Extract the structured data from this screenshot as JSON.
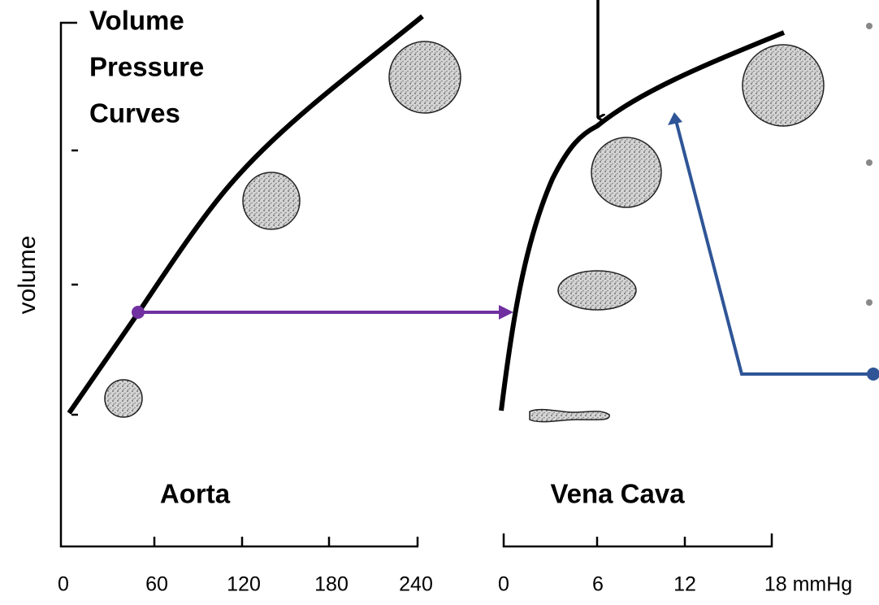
{
  "title": {
    "lines": [
      "Volume",
      "Pressure",
      "Curves"
    ]
  },
  "y_axis_label": "volume",
  "panels": [
    {
      "label": "Aorta",
      "ticks": [
        "0",
        "60",
        "120",
        "180",
        "240"
      ]
    },
    {
      "label": "Vena Cava",
      "ticks": [
        "0",
        "6",
        "12",
        "18 mmHg"
      ]
    }
  ]
}
